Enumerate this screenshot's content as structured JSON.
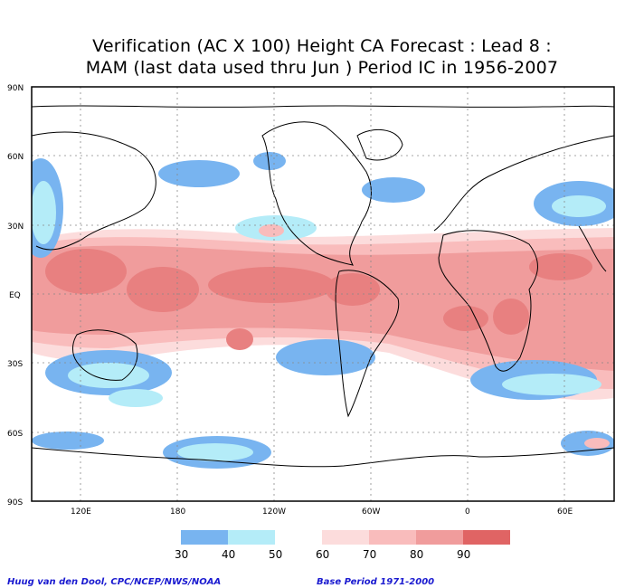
{
  "title": {
    "line1": "Verification (AC X 100) Height CA Forecast : Lead 8 :",
    "line2": "MAM (last data used thru Jun ) Period IC in 1956-2007"
  },
  "lat_labels": [
    "90N",
    "60N",
    "30N",
    "EQ",
    "30S",
    "60S",
    "90S"
  ],
  "lon_labels": [
    "120E",
    "180",
    "120W",
    "60W",
    "0",
    "60E"
  ],
  "legend": {
    "ticks": [
      "30",
      "40",
      "50",
      "60",
      "70",
      "80",
      "90"
    ],
    "colors": [
      "#78b4f0",
      "#b4ecf8",
      "#ffffff",
      "#fcdcdc",
      "#f9bcbc",
      "#f09c9c",
      "#e88080",
      "#e06464"
    ]
  },
  "footer": {
    "credit": "Huug van den Dool, CPC/NCEP/NWS/NOAA",
    "base_period": "Base Period 1971-2000"
  }
}
